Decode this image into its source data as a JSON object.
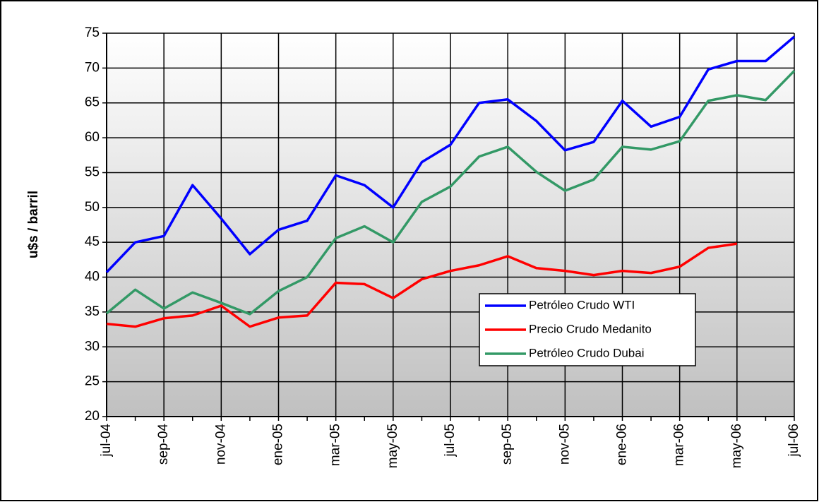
{
  "chart_data": {
    "type": "line",
    "y_label": "u$s / barril",
    "categories": [
      "jul-04",
      null,
      "sep-04",
      null,
      "nov-04",
      null,
      "ene-05",
      null,
      "mar-05",
      null,
      "may-05",
      null,
      "jul-05",
      null,
      "sep-05",
      null,
      "nov-05",
      null,
      "ene-06",
      null,
      "mar-06",
      null,
      "may-06",
      null,
      "jul-06"
    ],
    "series": [
      {
        "name": "Petróleo Crudo WTI",
        "color": "#0000ff",
        "values": [
          40.7,
          45.0,
          45.9,
          53.2,
          48.4,
          43.3,
          46.8,
          48.1,
          54.6,
          53.2,
          50.0,
          56.5,
          59.0,
          65.0,
          65.5,
          62.4,
          58.2,
          59.4,
          65.3,
          61.6,
          63.0,
          69.8,
          71.0,
          71.0,
          74.5
        ]
      },
      {
        "name": "Precio Crudo Medanito",
        "color": "#ff0000",
        "values": [
          33.3,
          32.9,
          34.1,
          34.5,
          35.9,
          32.9,
          34.2,
          34.5,
          39.2,
          39.0,
          37.0,
          39.7,
          40.9,
          41.7,
          43.0,
          41.3,
          40.9,
          40.3,
          40.9,
          40.6,
          41.5,
          44.2,
          44.8,
          null,
          null
        ]
      },
      {
        "name": "Petróleo Crudo Dubai",
        "color": "#339966",
        "values": [
          34.8,
          38.2,
          35.5,
          37.8,
          36.3,
          34.7,
          38.0,
          40.0,
          45.6,
          47.3,
          45.0,
          50.8,
          53.0,
          57.3,
          58.7,
          55.1,
          52.4,
          54.0,
          58.7,
          58.3,
          59.5,
          65.3,
          66.1,
          65.4,
          69.6
        ]
      }
    ],
    "ylim": [
      20,
      75
    ],
    "yticks": [
      20,
      25,
      30,
      35,
      40,
      45,
      50,
      55,
      60,
      65,
      70,
      75
    ],
    "grid": true
  }
}
